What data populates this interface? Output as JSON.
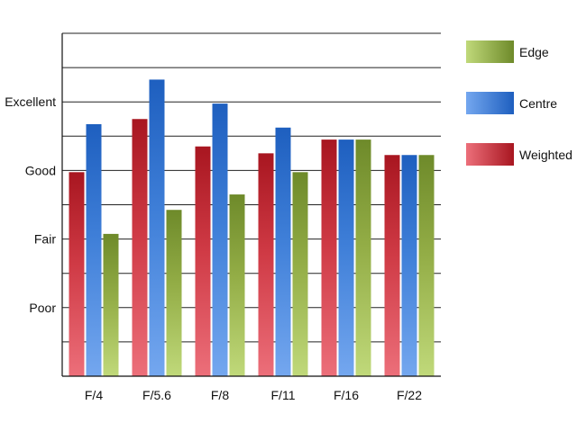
{
  "chart_data": {
    "type": "bar",
    "categories": [
      "F/4",
      "F/5.6",
      "F/8",
      "F/11",
      "F/16",
      "F/22"
    ],
    "y_tick_labels": [
      "Poor",
      "Fair",
      "Good",
      "Excellent"
    ],
    "y_tick_values": [
      2,
      4,
      6,
      8
    ],
    "ylim": [
      0,
      10
    ],
    "grid": true,
    "legend_position": "right",
    "series": [
      {
        "name": "Weighted",
        "values": [
          5.95,
          7.5,
          6.7,
          6.5,
          6.9,
          6.45
        ],
        "colors": {
          "top": "#a81620",
          "mid": "#cf3a45",
          "bottom": "#ec6f7a"
        }
      },
      {
        "name": "Centre",
        "values": [
          7.35,
          8.65,
          7.95,
          7.25,
          6.9,
          6.45
        ],
        "colors": {
          "top": "#1e5fbf",
          "mid": "#3f7fd8",
          "bottom": "#74a7ef"
        }
      },
      {
        "name": "Edge",
        "values": [
          4.15,
          4.85,
          5.3,
          5.95,
          6.9,
          6.45
        ],
        "colors": {
          "top": "#6e8a2a",
          "mid": "#93ad46",
          "bottom": "#c0d97a"
        }
      }
    ],
    "legend_order": [
      "Edge",
      "Centre",
      "Weighted"
    ]
  }
}
